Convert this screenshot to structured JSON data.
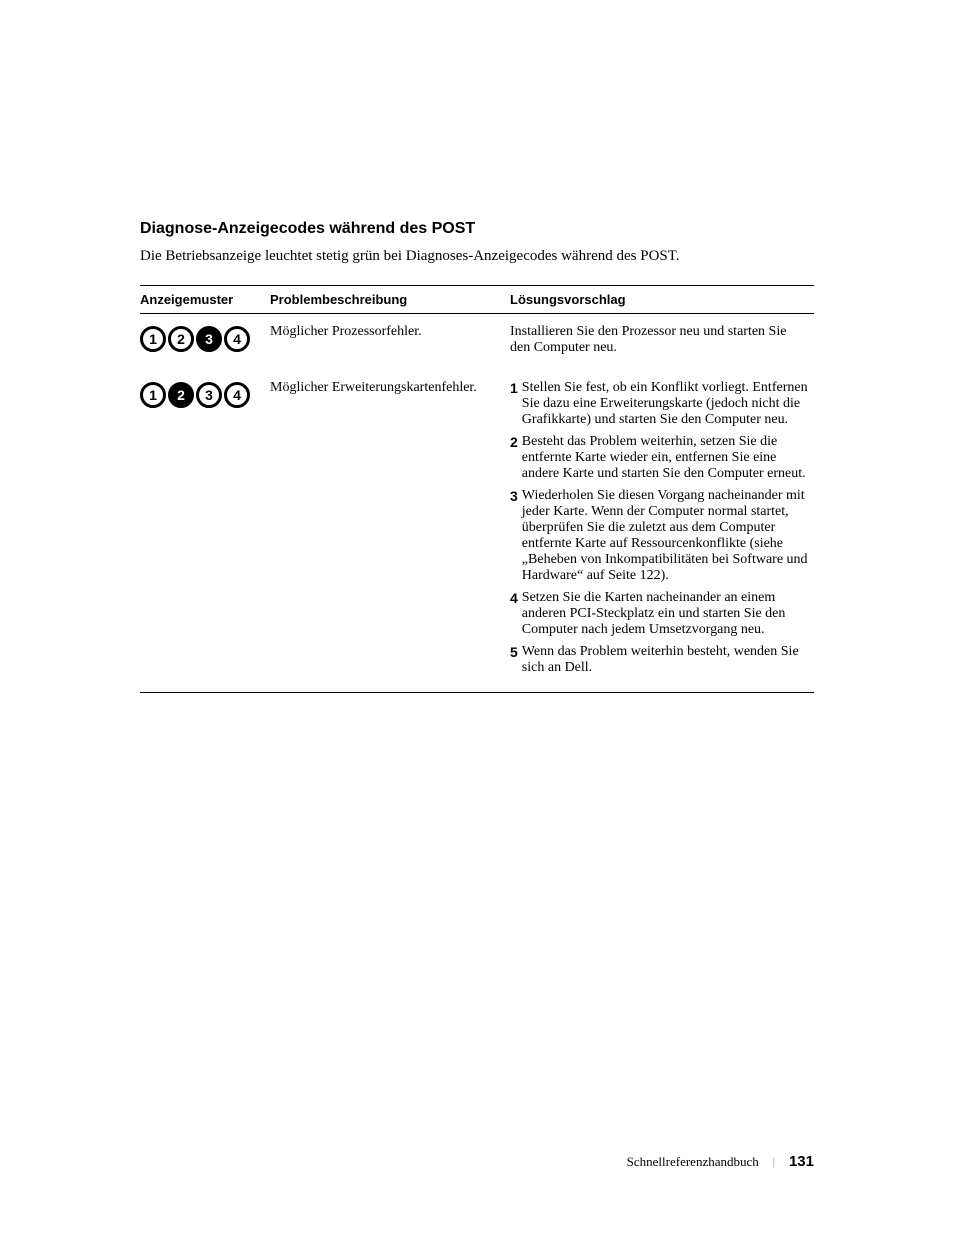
{
  "heading": "Diagnose-Anzeigecodes während des POST",
  "intro": "Die Betriebsanzeige leuchtet stetig grün bei Diagnoses-Anzeigecodes während des POST.",
  "columns": {
    "pattern": "Anzeigemuster",
    "problem": "Problembeschreibung",
    "solution": "Lösungsvorschlag"
  },
  "rows": [
    {
      "pattern": [
        false,
        false,
        true,
        false
      ],
      "problem": "Möglicher Prozessorfehler.",
      "solution_plain": "Installieren Sie den Prozessor neu und starten Sie den Computer neu."
    },
    {
      "pattern": [
        false,
        true,
        false,
        false
      ],
      "problem": "Möglicher Erweiterungskartenfehler.",
      "solution_steps": [
        {
          "n": "1",
          "t": "Stellen Sie fest, ob ein Konflikt vorliegt. Entfernen Sie dazu eine Erweiterungskarte (jedoch nicht die Grafikkarte) und starten Sie den Computer neu."
        },
        {
          "n": "2",
          "t": "Besteht das Problem weiterhin, setzen Sie die entfernte Karte wieder ein, entfernen Sie eine andere Karte und starten Sie den Computer erneut."
        },
        {
          "n": "3",
          "t": "Wiederholen Sie diesen Vorgang nacheinander mit jeder Karte. Wenn der Computer normal startet, überprüfen Sie die zuletzt aus dem Computer entfernte Karte auf Ressourcenkonflikte (siehe „Beheben von Inkompatibilitäten bei Software und Hardware“ auf Seite 122)."
        },
        {
          "n": "4",
          "t": "Setzen Sie die Karten nacheinander an einem anderen PCI-Steckplatz ein und starten Sie den Computer nach jedem Umsetzvorgang neu."
        },
        {
          "n": "5",
          "t": "Wenn das Problem weiterhin besteht, wenden Sie sich an Dell."
        }
      ]
    }
  ],
  "footer": {
    "label": "Schnellreferenzhandbuch",
    "page": "131"
  }
}
